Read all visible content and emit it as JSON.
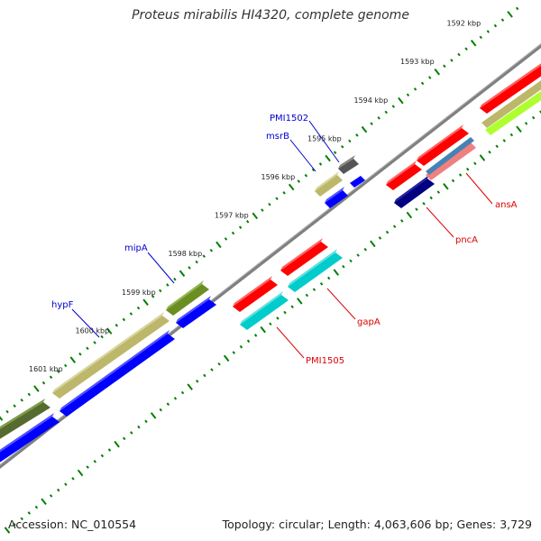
{
  "title": "Proteus mirabilis HI4320, complete genome",
  "footer": {
    "accession": "Accession: NC_010554",
    "summary": "Topology: circular; Length: 4,063,606 bp; Genes: 3,729"
  },
  "ticks": [
    {
      "label": "1592 kbp",
      "kbp": 1592
    },
    {
      "label": "1593 kbp",
      "kbp": 1593
    },
    {
      "label": "1594 kbp",
      "kbp": 1594
    },
    {
      "label": "1595 kbp",
      "kbp": 1595
    },
    {
      "label": "1596 kbp",
      "kbp": 1596
    },
    {
      "label": "1597 kbp",
      "kbp": 1597
    },
    {
      "label": "1598 kbp",
      "kbp": 1598
    },
    {
      "label": "1599 kbp",
      "kbp": 1599
    },
    {
      "label": "1600 kbp",
      "kbp": 1600
    },
    {
      "label": "1601 kbp",
      "kbp": 1601
    }
  ],
  "gene_labels": [
    {
      "text": "PMI1502",
      "color": "#0000cc"
    },
    {
      "text": "msrB",
      "color": "#0000cc"
    },
    {
      "text": "mipA",
      "color": "#0000cc"
    },
    {
      "text": "hypF",
      "color": "#0000cc"
    },
    {
      "text": "ansA",
      "color": "#dd0000"
    },
    {
      "text": "pncA",
      "color": "#dd0000"
    },
    {
      "text": "gapA",
      "color": "#dd0000"
    },
    {
      "text": "PMI1505",
      "color": "#dd0000"
    }
  ],
  "colors": {
    "backbone": "#808080",
    "tick": "#008000",
    "forward_cds": "#0000ff",
    "reverse_cds": "#ff0000",
    "olive": "#6b8e23",
    "khaki": "#bdb76b",
    "cyan": "#00cccc",
    "gray": "#666666",
    "navy": "#000080",
    "steelblue": "#4682b4",
    "pink": "#f08080",
    "lime": "#adff2f"
  }
}
